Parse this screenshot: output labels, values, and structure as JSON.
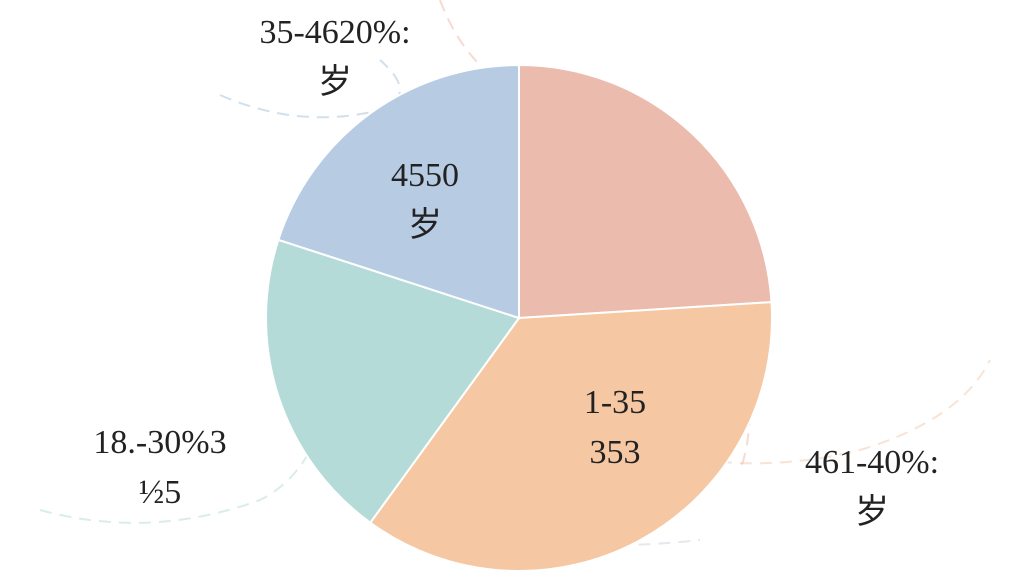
{
  "chart_data": {
    "type": "pie",
    "values": [
      24,
      36,
      20,
      20
    ],
    "colors": [
      "#ebbcad",
      "#f5c7a3",
      "#b5dbd9",
      "#b7cbe3"
    ],
    "annotations": [
      {
        "lines": [
          "4550",
          "岁"
        ]
      },
      {
        "lines": [
          "1-35",
          "353"
        ]
      },
      {
        "lines": [
          "35-4620%:",
          "岁"
        ]
      },
      {
        "lines": [
          "461-40%:",
          "岁"
        ]
      },
      {
        "lines": [
          "18.-30%3",
          "½5"
        ]
      }
    ]
  }
}
